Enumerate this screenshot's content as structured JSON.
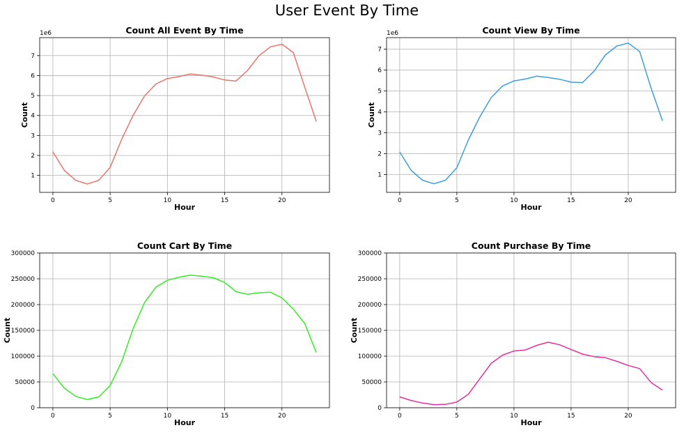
{
  "figure": {
    "title": "User Event By Time"
  },
  "chart_data": [
    {
      "type": "line",
      "title": "Count All Event By Time",
      "xlabel": "Hour",
      "ylabel": "Count",
      "y_offset_label": "1e6",
      "grid": true,
      "color": "#e8746a",
      "xlim": [
        -1.15,
        24.15
      ],
      "ylim": [
        150000,
        7900000
      ],
      "xticks": [
        0,
        5,
        10,
        15,
        20
      ],
      "yticks": [
        1000000,
        2000000,
        3000000,
        4000000,
        5000000,
        6000000,
        7000000
      ],
      "ytick_labels": [
        "1",
        "2",
        "3",
        "4",
        "5",
        "6",
        "7"
      ],
      "x": [
        0,
        1,
        2,
        3,
        4,
        5,
        6,
        7,
        8,
        9,
        10,
        11,
        12,
        13,
        14,
        15,
        16,
        17,
        18,
        19,
        20,
        21,
        22,
        23
      ],
      "y": [
        2180000,
        1250000,
        750000,
        570000,
        750000,
        1400000,
        2800000,
        4000000,
        4980000,
        5580000,
        5850000,
        5950000,
        6080000,
        6020000,
        5930000,
        5780000,
        5730000,
        6260000,
        7000000,
        7440000,
        7570000,
        7150000,
        5410000,
        3700000
      ]
    },
    {
      "type": "line",
      "title": "Count View By Time",
      "xlabel": "Hour",
      "ylabel": "Count",
      "y_offset_label": "1e6",
      "grid": true,
      "color": "#3a9de0",
      "xlim": [
        -1.15,
        24.15
      ],
      "ylim": [
        150000,
        7550000
      ],
      "xticks": [
        0,
        5,
        10,
        15,
        20
      ],
      "yticks": [
        1000000,
        2000000,
        3000000,
        4000000,
        5000000,
        6000000,
        7000000
      ],
      "ytick_labels": [
        "1",
        "2",
        "3",
        "4",
        "5",
        "6",
        "7"
      ],
      "x": [
        0,
        1,
        2,
        3,
        4,
        5,
        6,
        7,
        8,
        9,
        10,
        11,
        12,
        13,
        14,
        15,
        16,
        17,
        18,
        19,
        20,
        21,
        22,
        23
      ],
      "y": [
        2080000,
        1200000,
        730000,
        560000,
        730000,
        1330000,
        2650000,
        3750000,
        4680000,
        5240000,
        5480000,
        5570000,
        5710000,
        5640000,
        5560000,
        5420000,
        5400000,
        5940000,
        6720000,
        7150000,
        7290000,
        6890000,
        5140000,
        3570000
      ]
    },
    {
      "type": "line",
      "title": "Count Cart By Time",
      "xlabel": "Hour",
      "ylabel": "Count",
      "grid": true,
      "color": "#33ee22",
      "xlim": [
        -1.15,
        24.15
      ],
      "ylim": [
        0,
        300000
      ],
      "xticks": [
        0,
        5,
        10,
        15,
        20
      ],
      "yticks": [
        0,
        50000,
        100000,
        150000,
        200000,
        250000,
        300000
      ],
      "ytick_labels": [
        "0",
        "50000",
        "100000",
        "150000",
        "200000",
        "250000",
        "300000"
      ],
      "x": [
        0,
        1,
        2,
        3,
        4,
        5,
        6,
        7,
        8,
        9,
        10,
        11,
        12,
        13,
        14,
        15,
        16,
        17,
        18,
        19,
        20,
        21,
        22,
        23
      ],
      "y": [
        66000,
        38000,
        22000,
        16000,
        21000,
        43000,
        89000,
        153000,
        204000,
        234000,
        247000,
        253000,
        257000,
        255000,
        252000,
        243000,
        225000,
        220000,
        223000,
        224000,
        213000,
        191000,
        163000,
        107000
      ]
    },
    {
      "type": "line",
      "title": "Count Purchase By Time",
      "xlabel": "Hour",
      "ylabel": "Count",
      "grid": true,
      "color": "#e0309e",
      "xlim": [
        -1.15,
        24.15
      ],
      "ylim": [
        0,
        300000
      ],
      "xticks": [
        0,
        5,
        10,
        15,
        20
      ],
      "yticks": [
        0,
        50000,
        100000,
        150000,
        200000,
        250000,
        300000
      ],
      "ytick_labels": [
        "0",
        "50000",
        "100000",
        "150000",
        "200000",
        "250000",
        "300000"
      ],
      "x": [
        0,
        1,
        2,
        3,
        4,
        5,
        6,
        7,
        8,
        9,
        10,
        11,
        12,
        13,
        14,
        15,
        16,
        17,
        18,
        19,
        20,
        21,
        22,
        23
      ],
      "y": [
        21000,
        14000,
        9000,
        6000,
        6500,
        11000,
        26000,
        56000,
        86000,
        102000,
        110000,
        112000,
        121000,
        127000,
        122000,
        113000,
        104000,
        99000,
        97000,
        90000,
        82000,
        76000,
        49000,
        34000
      ]
    }
  ]
}
